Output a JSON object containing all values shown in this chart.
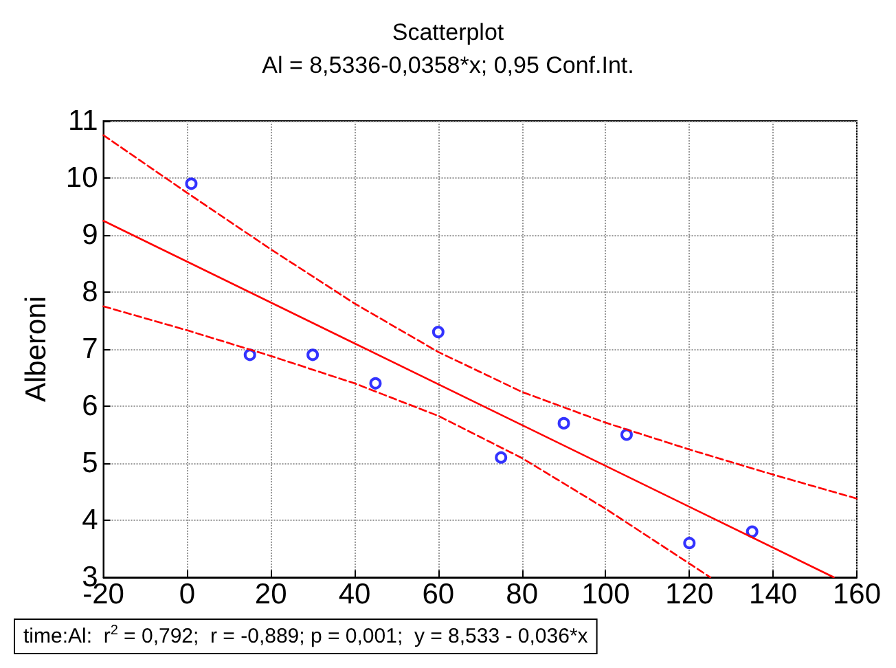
{
  "chart_data": {
    "type": "scatter",
    "title": "Scatterplot",
    "subtitle": "Al = 8,5336-0,0358*x; 0,95 Conf.Int.",
    "ylabel": "Alberoni",
    "annotations": [
      "time:Al:  r$^{2}$ = 0,792;  r = -0,889; p = 0,001;  y = 8,533 - 0,036*x"
    ],
    "xlim": [
      -20,
      160
    ],
    "xticks": [
      -20,
      0,
      20,
      40,
      60,
      80,
      100,
      120,
      140,
      160
    ],
    "ylim": [
      3,
      11
    ],
    "yticks": [
      3,
      4,
      5,
      6,
      7,
      8,
      9,
      10,
      11
    ],
    "grid": true,
    "series": [
      {
        "type": "scatter",
        "color": "#0000ff",
        "marker": "circle",
        "x": [
          1,
          15,
          30,
          45,
          60,
          75,
          90,
          105,
          120,
          135
        ],
        "values": [
          9.9,
          6.9,
          6.9,
          6.4,
          7.3,
          5.1,
          5.7,
          5.5,
          3.6,
          3.8
        ]
      },
      {
        "type": "line",
        "color": "#ff0000",
        "line_style": "solid",
        "marker": "none",
        "x": [
          -20,
          154.5
        ],
        "values": [
          9.25,
          3.0
        ]
      },
      {
        "type": "line",
        "color": "#ff0000",
        "line_style": "dashed",
        "marker": "none",
        "x": [
          -20,
          0,
          20,
          40,
          60,
          80,
          100,
          120,
          140,
          160
        ],
        "values": [
          10.75,
          9.74,
          8.75,
          7.8,
          6.95,
          6.25,
          5.71,
          5.24,
          4.8,
          4.38
        ]
      },
      {
        "type": "line",
        "color": "#ff0000",
        "line_style": "dashed",
        "marker": "none",
        "x": [
          -20,
          0,
          20,
          40,
          60,
          80,
          100,
          120,
          125
        ],
        "values": [
          7.75,
          7.33,
          6.88,
          6.4,
          5.83,
          5.09,
          4.2,
          3.24,
          3.0
        ]
      }
    ]
  }
}
